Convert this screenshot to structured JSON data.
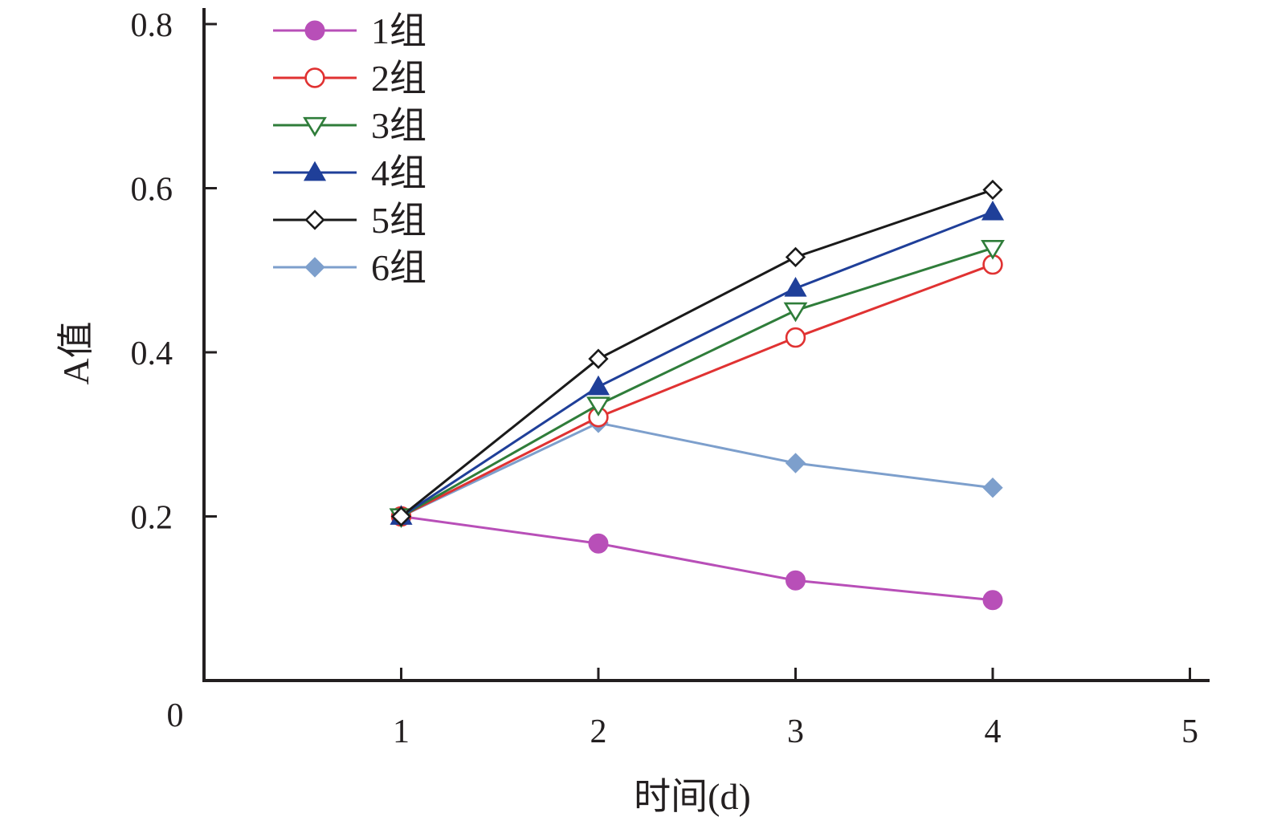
{
  "chart_data": {
    "type": "line",
    "xlabel": "时间(d)",
    "ylabel": "A值",
    "origin_label": "0",
    "xlim": [
      0,
      5
    ],
    "ylim": [
      0,
      0.8
    ],
    "x_ticks": [
      1,
      2,
      3,
      4,
      5
    ],
    "x_tick_labels": [
      "1",
      "2",
      "3",
      "4",
      "5"
    ],
    "y_ticks": [
      0.2,
      0.4,
      0.6,
      0.8
    ],
    "y_tick_labels": [
      "0.2",
      "0.4",
      "0.6",
      "0.8"
    ],
    "x": [
      1,
      2,
      3,
      4
    ],
    "grid": false,
    "legend_position": "top-left",
    "series": [
      {
        "name": "1组",
        "color": "#b84fb8",
        "marker": "circle-filled",
        "values": [
          0.2,
          0.167,
          0.122,
          0.098
        ]
      },
      {
        "name": "2组",
        "color": "#e03232",
        "marker": "circle-open",
        "values": [
          0.2,
          0.321,
          0.418,
          0.507
        ]
      },
      {
        "name": "3组",
        "color": "#2f7d3a",
        "marker": "triangle-down-open",
        "values": [
          0.2,
          0.336,
          0.451,
          0.527
        ]
      },
      {
        "name": "4组",
        "color": "#1f3f99",
        "marker": "triangle-up-filled",
        "values": [
          0.2,
          0.358,
          0.478,
          0.571
        ]
      },
      {
        "name": "5组",
        "color": "#1a1a1a",
        "marker": "diamond-open",
        "values": [
          0.2,
          0.392,
          0.516,
          0.598
        ]
      },
      {
        "name": "6组",
        "color": "#7d9fcc",
        "marker": "diamond-filled",
        "values": [
          0.2,
          0.314,
          0.265,
          0.235
        ]
      }
    ]
  }
}
